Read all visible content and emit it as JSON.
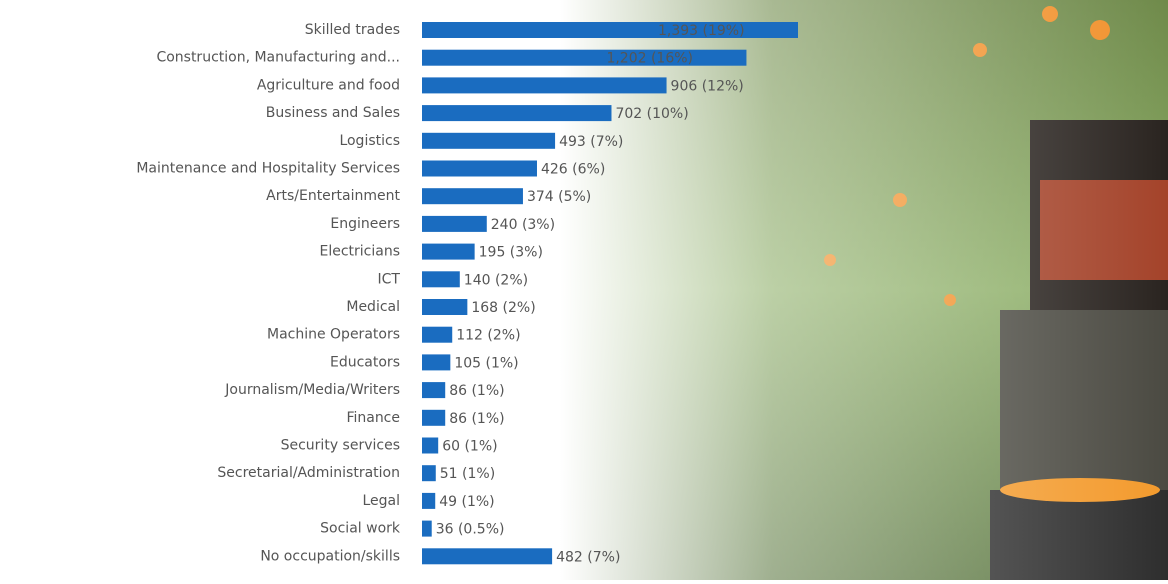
{
  "chart_data": {
    "type": "bar",
    "orientation": "horizontal",
    "categories": [
      "Skilled trades",
      "Construction, Manufacturing and...",
      "Agriculture and food",
      "Business and Sales",
      "Logistics",
      "Maintenance and Hospitality Services",
      "Arts/Entertainment",
      "Engineers",
      "Electricians",
      "ICT",
      "Medical",
      "Machine Operators",
      "Educators",
      "Journalism/Media/Writers",
      "Finance",
      "Security services",
      "Secretarial/Administration",
      "Legal",
      "Social work",
      "No occupation/skills"
    ],
    "values": [
      1393,
      1202,
      906,
      702,
      493,
      426,
      374,
      240,
      195,
      140,
      168,
      112,
      105,
      86,
      86,
      60,
      51,
      49,
      36,
      482
    ],
    "value_labels": [
      "1,393 (19%)",
      "1,202 (16%)",
      "906 (12%)",
      "702 (10%)",
      "493 (7%)",
      "426 (6%)",
      "374 (5%)",
      "240 (3%)",
      "195 (3%)",
      "140 (2%)",
      "168 (2%)",
      "112 (2%)",
      "105 (1%)",
      "86 (1%)",
      "86 (1%)",
      "60 (1%)",
      "51 (1%)",
      "49 (1%)",
      "36 (0.5%)",
      "482 (7%)"
    ],
    "color": "#1a6cc0"
  }
}
